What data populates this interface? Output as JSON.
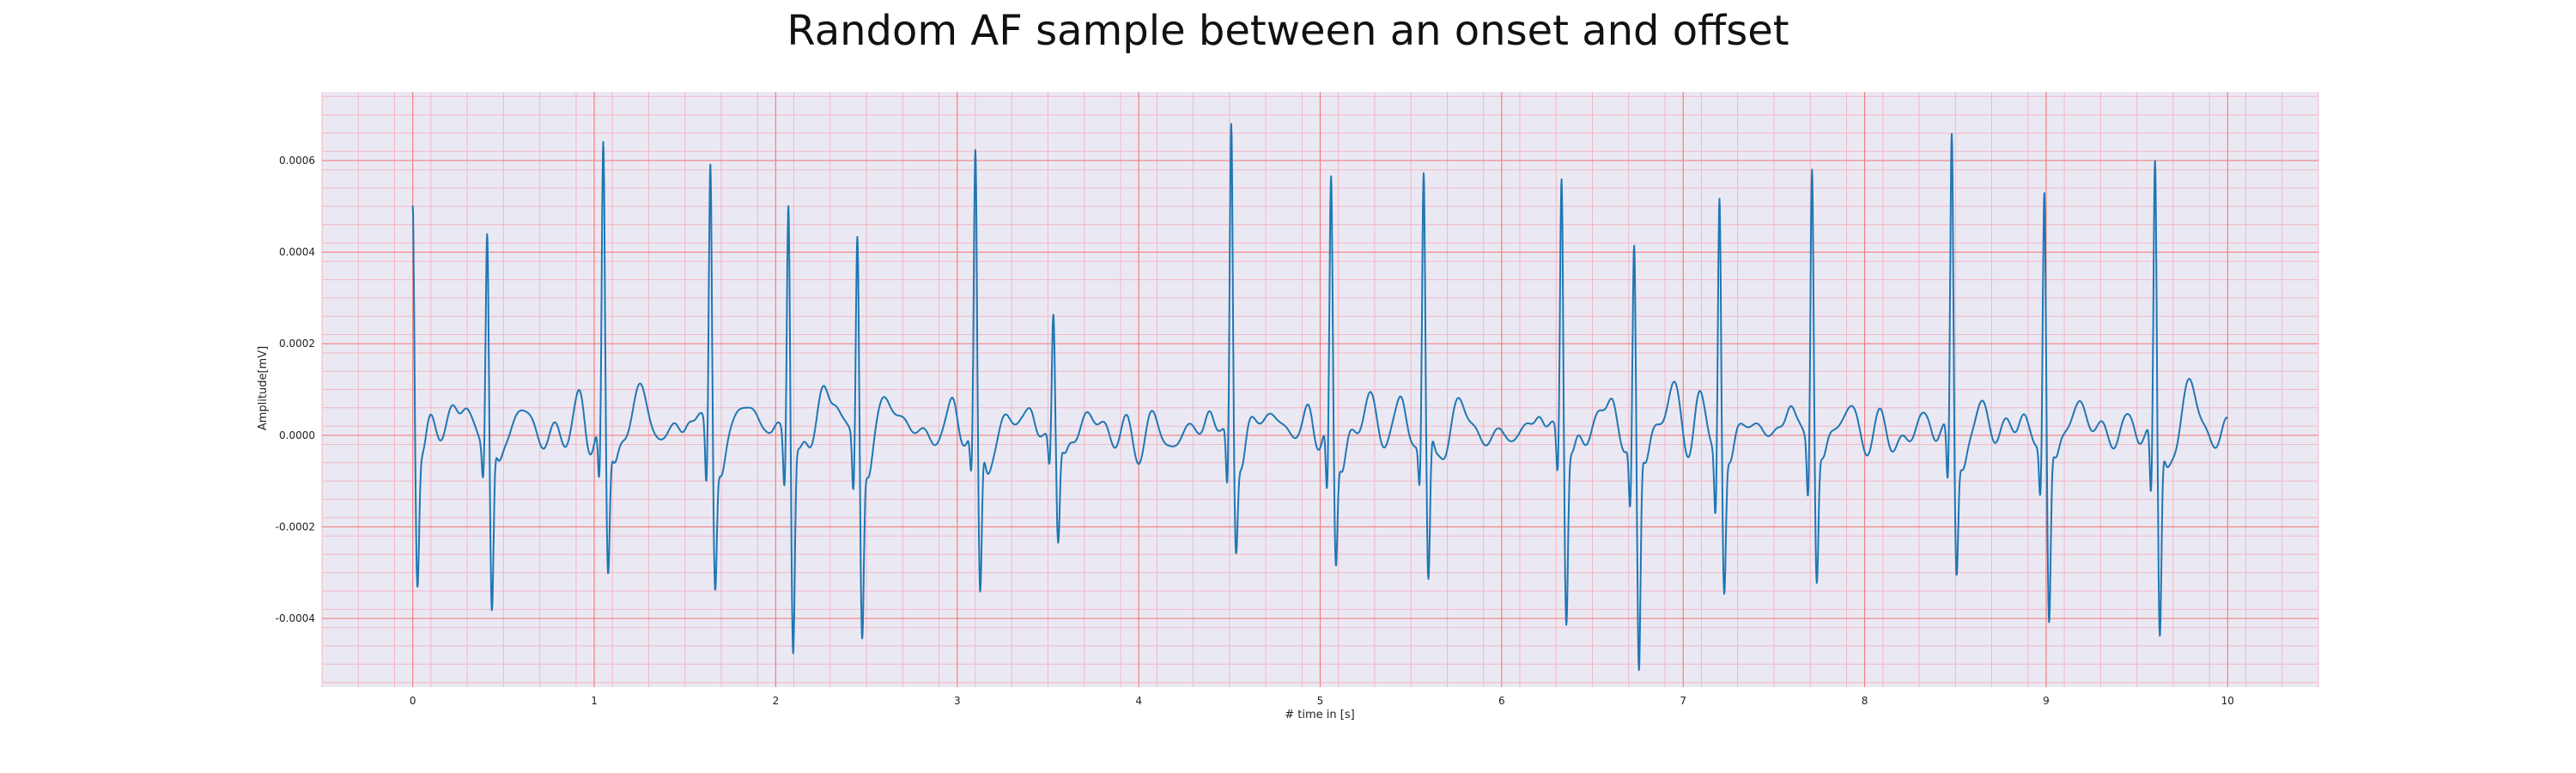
{
  "chart_data": {
    "type": "line",
    "title": "Random AF sample between an onset and offset",
    "xlabel": "# time in [s]",
    "ylabel": "Amplitude[mV]",
    "xlim": [
      -0.5,
      10.5
    ],
    "ylim": [
      -0.00055,
      0.00075
    ],
    "x_ticks": [
      0,
      1,
      2,
      3,
      4,
      5,
      6,
      7,
      8,
      9,
      10
    ],
    "x_tick_labels": [
      "0",
      "1",
      "2",
      "3",
      "4",
      "5",
      "6",
      "7",
      "8",
      "9",
      "10"
    ],
    "y_ticks": [
      -0.0004,
      -0.0002,
      0.0,
      0.0002,
      0.0004,
      0.0006
    ],
    "y_tick_labels": [
      "-0.0004",
      "-0.0002",
      "0.0000",
      "0.0002",
      "0.0004",
      "0.0006"
    ],
    "grid": true,
    "minor_grid": true,
    "colors": {
      "line": "#1f77b4",
      "major_grid": "#f28080",
      "minor_grid": "#f3b7c4",
      "plot_background": "#eae9f3"
    },
    "beats": [
      {
        "t": 0.0,
        "r": 0.00055,
        "s": -0.00029,
        "q": 0.0
      },
      {
        "t": 0.41,
        "r": 0.00046,
        "s": -0.00038,
        "q": -8e-05
      },
      {
        "t": 1.05,
        "r": 0.00061,
        "s": -0.00031,
        "q": -0.00013
      },
      {
        "t": 1.64,
        "r": 0.0006,
        "s": -0.0003,
        "q": -0.00014
      },
      {
        "t": 2.07,
        "r": 0.00053,
        "s": -0.00046,
        "q": -0.00012
      },
      {
        "t": 2.45,
        "r": 0.00045,
        "s": -0.00041,
        "q": -0.00013
      },
      {
        "t": 3.1,
        "r": 0.00059,
        "s": -0.00037,
        "q": -0.0001
      },
      {
        "t": 3.53,
        "r": 0.00027,
        "s": -0.00023,
        "q": -7e-05
      },
      {
        "t": 4.51,
        "r": 0.00069,
        "s": -0.00022,
        "q": -0.00013
      },
      {
        "t": 5.06,
        "r": 0.00053,
        "s": -0.00028,
        "q": -0.00016
      },
      {
        "t": 5.57,
        "r": 0.00057,
        "s": -0.00035,
        "q": -0.0001
      },
      {
        "t": 6.33,
        "r": 0.00058,
        "s": -0.00039,
        "q": -0.0001
      },
      {
        "t": 6.73,
        "r": 0.00041,
        "s": -0.00052,
        "q": -0.00015
      },
      {
        "t": 7.2,
        "r": 0.00055,
        "s": -0.00032,
        "q": -0.00015
      },
      {
        "t": 7.71,
        "r": 0.00061,
        "s": -0.0003,
        "q": -0.00013
      },
      {
        "t": 8.48,
        "r": 0.00066,
        "s": -0.00028,
        "q": -0.00013
      },
      {
        "t": 8.99,
        "r": 0.00054,
        "s": -0.00041,
        "q": -0.00012
      },
      {
        "t": 9.6,
        "r": 0.00058,
        "s": -0.00045,
        "q": -0.00016
      }
    ],
    "end_time": 10.0
  }
}
